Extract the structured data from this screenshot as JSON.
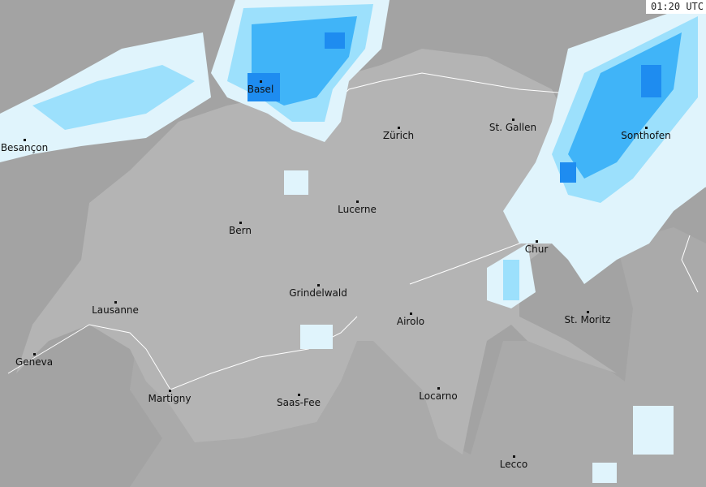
{
  "timestamp": "01:20 UTC",
  "colors": {
    "background": "#a3a3a3",
    "country": "#b4b4b4",
    "neighbor_light": "#aaaaaa",
    "border": "#ffffff",
    "precip_light": "#e0f4fc",
    "precip_moderate": "#9ce0fc",
    "precip_heavy": "#40b4f8",
    "precip_intense": "#1e8cf0"
  },
  "cities": [
    {
      "name": "Basel"
    },
    {
      "name": "Besançon"
    },
    {
      "name": "Zürich"
    },
    {
      "name": "St. Gallen"
    },
    {
      "name": "Sonthofen"
    },
    {
      "name": "Lucerne"
    },
    {
      "name": "Bern"
    },
    {
      "name": "Chur"
    },
    {
      "name": "Grindelwald"
    },
    {
      "name": "Lausanne"
    },
    {
      "name": "Airolo"
    },
    {
      "name": "St. Moritz"
    },
    {
      "name": "Geneva"
    },
    {
      "name": "Martigny"
    },
    {
      "name": "Saas-Fee"
    },
    {
      "name": "Locarno"
    },
    {
      "name": "Lecco"
    }
  ]
}
